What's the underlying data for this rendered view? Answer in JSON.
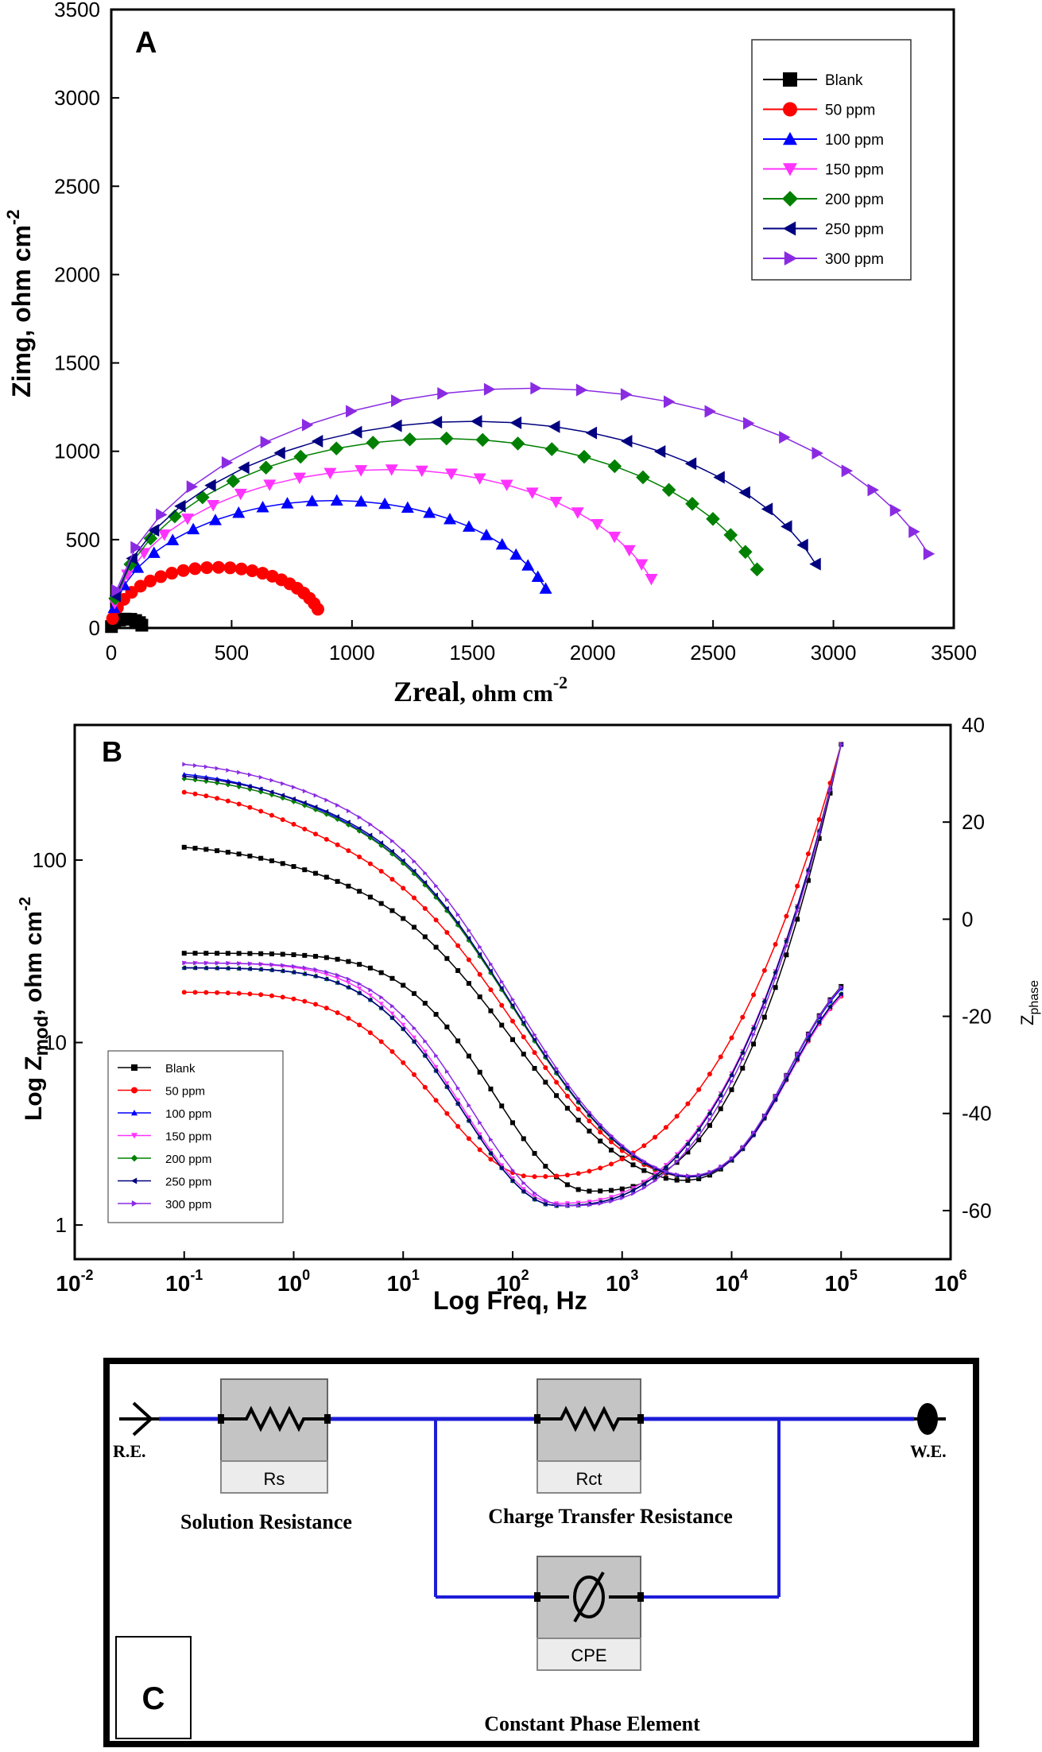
{
  "chart_data": [
    {
      "panel_label": "A",
      "type": "scatter",
      "xlabel_main": "Zreal",
      "xlabel_unit": ", ohm cm",
      "xlabel_sup": "-2",
      "ylabel_main": "Zimg, ohm cm",
      "ylabel_sup": "-2",
      "xlim": [
        0,
        3500
      ],
      "ylim": [
        0,
        3500
      ],
      "xticks": [
        0,
        500,
        1000,
        1500,
        2000,
        2500,
        3000,
        3500
      ],
      "yticks": [
        0,
        500,
        1000,
        1500,
        2000,
        2500,
        3000,
        3500
      ],
      "x_tick_labels": [
        "0",
        "500",
        "1000",
        "1500",
        "2000",
        "2500",
        "3000",
        "3500"
      ],
      "y_tick_labels": [
        "0",
        "500",
        "1000",
        "1500",
        "2000",
        "2500",
        "3000",
        "3500"
      ],
      "legend_position": "top-right",
      "series": [
        {
          "name": "Blank",
          "marker": "square",
          "color": "#000000",
          "R": 130,
          "n": 8
        },
        {
          "name": "50 ppm",
          "marker": "circle",
          "color": "#ff0000",
          "R": 880,
          "n": 24
        },
        {
          "name": "100 ppm",
          "marker": "triangle-up",
          "color": "#0000ff",
          "R": 1850,
          "n": 24
        },
        {
          "name": "150 ppm",
          "marker": "triangle-down",
          "color": "#ff33ff",
          "R": 2300,
          "n": 24
        },
        {
          "name": "200 ppm",
          "marker": "diamond",
          "color": "#008000",
          "R": 2750,
          "n": 24
        },
        {
          "name": "250 ppm",
          "marker": "triangle-left",
          "color": "#000080",
          "R": 3000,
          "n": 24
        },
        {
          "name": "300 ppm",
          "marker": "triangle-right",
          "color": "#8a2be2",
          "R": 3480,
          "n": 24
        }
      ]
    },
    {
      "panel_label": "B",
      "type": "line",
      "xlabel": "Log Freq, Hz",
      "ylabel_left_pre": "Log Z",
      "ylabel_left_sub": "mod",
      "ylabel_left_post": ", ohm cm",
      "ylabel_left_sup": "-2",
      "ylabel_right": "Z",
      "ylabel_right_sub": "phase",
      "x_scale": "log",
      "xlim_exp": [
        -2,
        6
      ],
      "x_tick_base": "10",
      "x_tick_exps": [
        "-2",
        "-1",
        "0",
        "1",
        "2",
        "3",
        "4",
        "5",
        "6"
      ],
      "left_y_scale": "log",
      "left_y_ticks": [
        1,
        10,
        100
      ],
      "left_y_tick_labels": [
        "1",
        "10",
        "100"
      ],
      "right_ylim": [
        -70,
        40
      ],
      "right_y_ticks": [
        40,
        20,
        0,
        -20,
        -40,
        -60
      ],
      "right_y_tick_labels": [
        "40",
        "20",
        "0",
        "-20",
        "-40",
        "-60"
      ],
      "legend_position": "bottom-left",
      "series": [
        {
          "name": "Blank",
          "color": "#000000",
          "marker": "square",
          "mod_low": 125,
          "mod_mid": 100,
          "mod_high": 30,
          "phase_start": -7,
          "phase_min": -56,
          "phase_min_freq": 500
        },
        {
          "name": "50 ppm",
          "color": "#ff0000",
          "marker": "circle",
          "mod_low": 260,
          "mod_mid": 150,
          "mod_high": 25,
          "phase_start": -15,
          "phase_min": -53,
          "phase_min_freq": 150
        },
        {
          "name": "100 ppm",
          "color": "#0000ff",
          "marker": "triangle-up",
          "mod_low": 320,
          "mod_mid": 230,
          "mod_high": 29,
          "phase_start": -10,
          "phase_min": -59,
          "phase_min_freq": 250
        },
        {
          "name": "150 ppm",
          "color": "#ff33ff",
          "marker": "triangle-down",
          "mod_low": 300,
          "mod_mid": 230,
          "mod_high": 26,
          "phase_start": -9,
          "phase_min": -58.5,
          "phase_min_freq": 250
        },
        {
          "name": "200 ppm",
          "color": "#008000",
          "marker": "diamond",
          "mod_low": 300,
          "mod_mid": 230,
          "mod_high": 27,
          "phase_start": -10,
          "phase_min": -59,
          "phase_min_freq": 250
        },
        {
          "name": "250 ppm",
          "color": "#000080",
          "marker": "triangle-left",
          "mod_low": 310,
          "mod_mid": 240,
          "mod_high": 27,
          "phase_start": -10,
          "phase_min": -59,
          "phase_min_freq": 250
        },
        {
          "name": "300 ppm",
          "color": "#8a2be2",
          "marker": "triangle-right",
          "mod_low": 360,
          "mod_mid": 280,
          "mod_high": 30,
          "phase_start": -9,
          "phase_min": -59,
          "phase_min_freq": 300
        }
      ]
    }
  ],
  "circuit": {
    "panel_label": "C",
    "ref_electrode": "R.E.",
    "work_electrode": "W.E.",
    "rs_label": "Rs",
    "rs_caption": "Solution Resistance",
    "rct_label": "Rct",
    "rct_caption": "Charge Transfer Resistance",
    "cpe_label": "CPE",
    "cpe_caption": "Constant Phase Element",
    "wire_color": "#1c1cd8"
  }
}
